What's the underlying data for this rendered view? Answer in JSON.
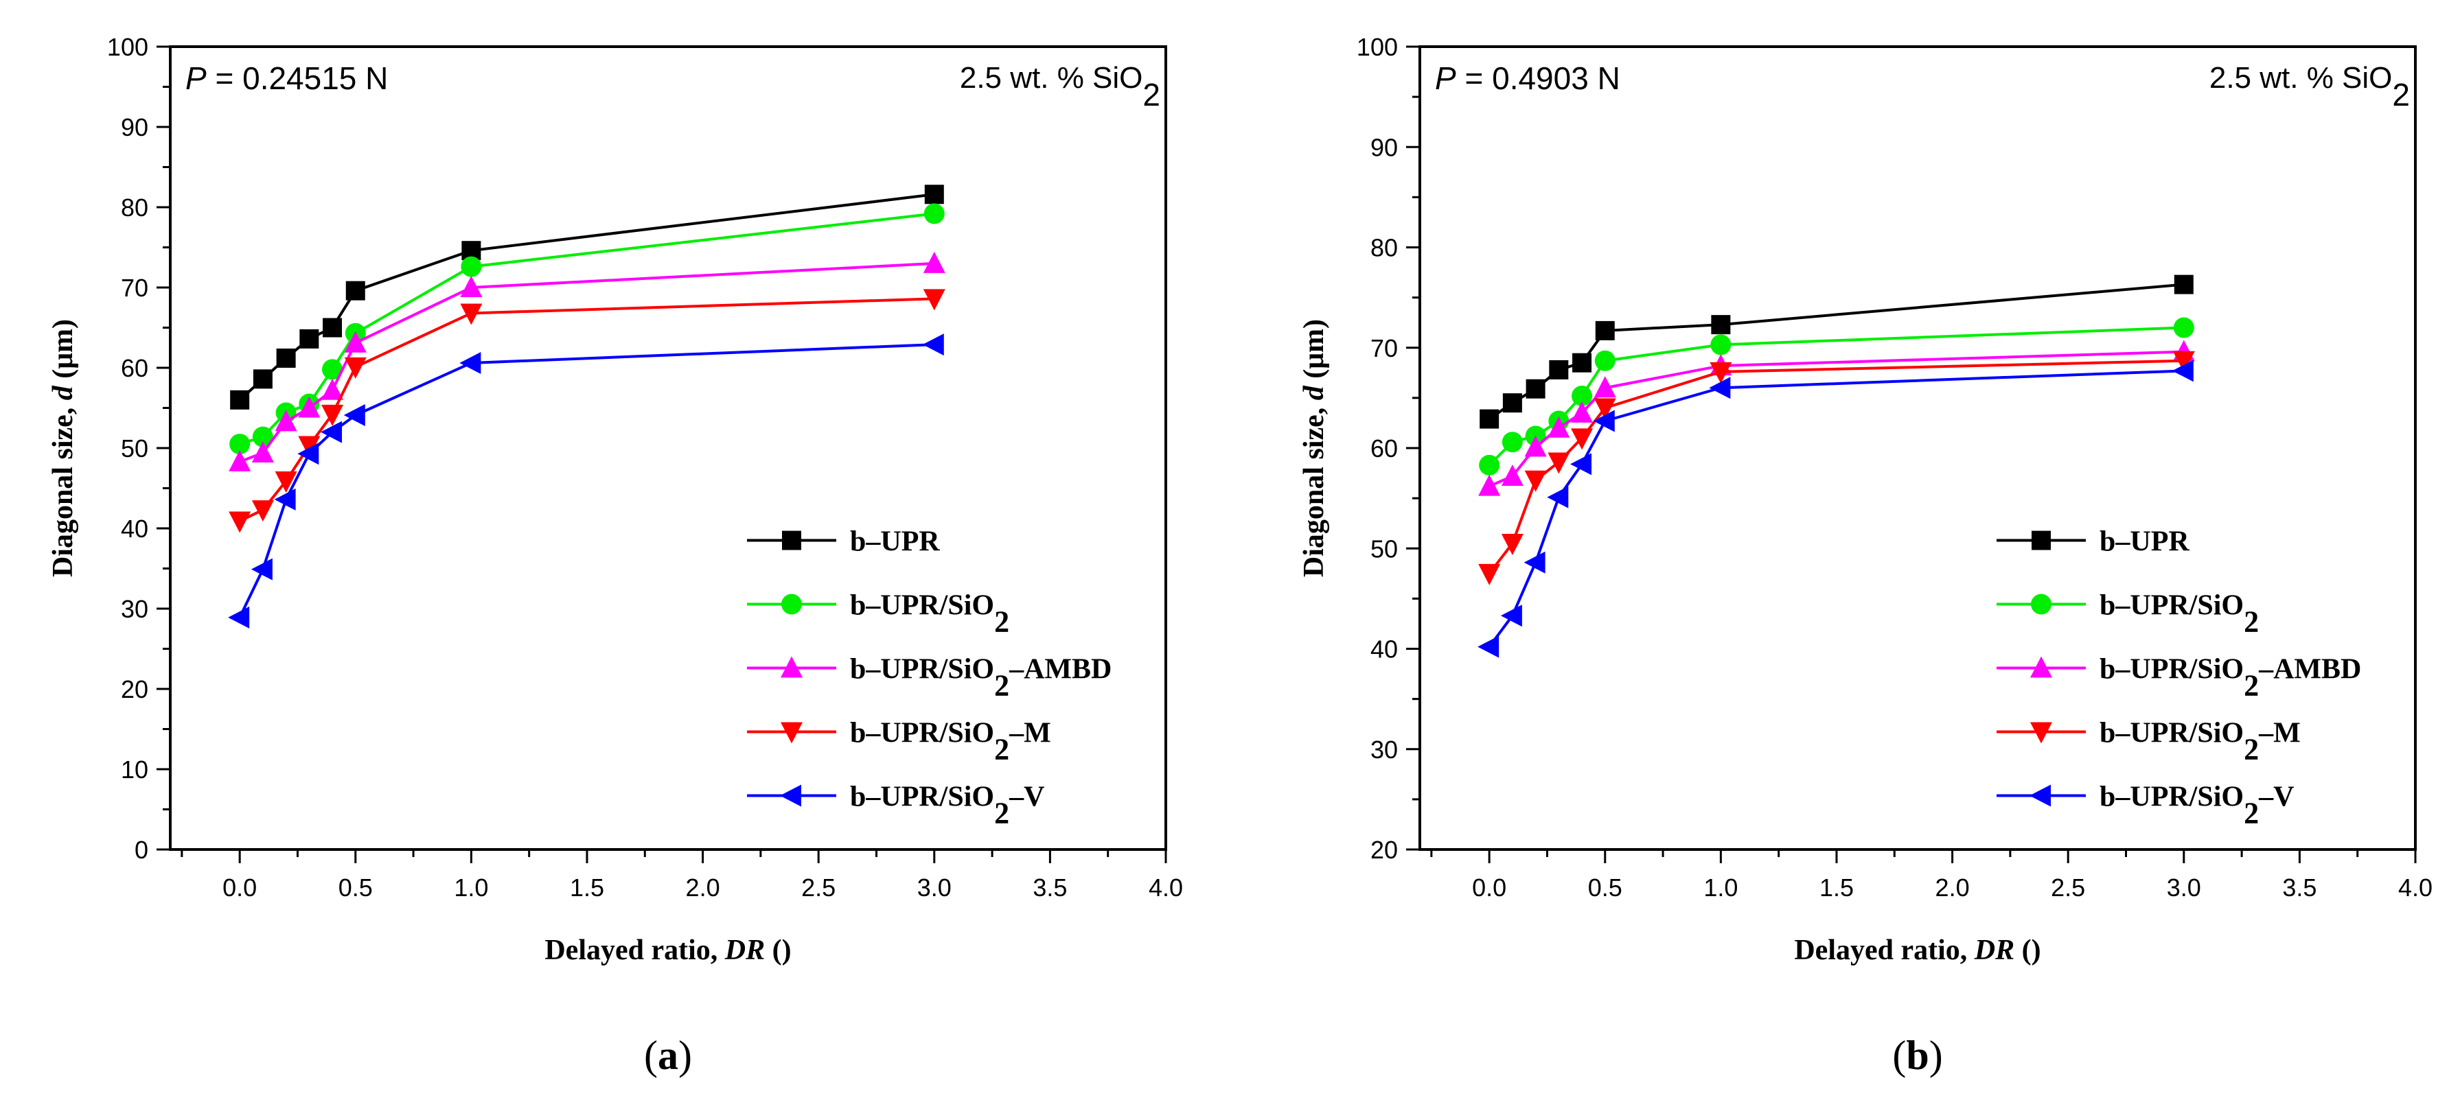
{
  "colors": {
    "b-UPR": "#000000",
    "b-UPR/SiO2": "#00ee00",
    "b-UPR/SiO2-AMBD": "#ff00ff",
    "b-UPR/SiO2-M": "#ff0000",
    "b-UPR/SiO2-V": "#0000ff"
  },
  "chart_data": [
    {
      "type": "line",
      "panel_label": "(a)",
      "annotation_left": "P = 0.24515 N",
      "annotation_right": "2.5 wt. % SiO2",
      "xlabel": "Delayed ratio, DR ()",
      "ylabel": "Diagonal size, d (μm)",
      "xlim": [
        -0.3,
        4.0
      ],
      "ylim": [
        0,
        100
      ],
      "xticks": [
        "0.0",
        "0.5",
        "1.0",
        "1.5",
        "2.0",
        "2.5",
        "3.0",
        "3.5",
        "4.0"
      ],
      "yticks": [
        "0",
        "10",
        "20",
        "30",
        "40",
        "50",
        "60",
        "70",
        "80",
        "90",
        "100"
      ],
      "legend_position": "lower-right",
      "x": [
        0,
        0.1,
        0.2,
        0.3,
        0.4,
        0.5,
        1.0,
        3.0
      ],
      "series": [
        {
          "name": "b–UPR",
          "key": "b-UPR",
          "marker": "square",
          "values": [
            56,
            58.6,
            61.2,
            63.6,
            65,
            69.6,
            74.6,
            81.6
          ]
        },
        {
          "name": "b–UPR/SiO2",
          "key": "b-UPR/SiO2",
          "marker": "circle",
          "values": [
            50.5,
            51.4,
            54.4,
            55.5,
            59.8,
            64.3,
            72.6,
            79.2
          ]
        },
        {
          "name": "b–UPR/SiO2–AMBD",
          "key": "b-UPR/SiO2-AMBD",
          "marker": "triangle-up",
          "values": [
            48.3,
            49.4,
            53.3,
            55,
            57.2,
            63.1,
            70,
            73
          ]
        },
        {
          "name": "b–UPR/SiO2–M",
          "key": "b-UPR/SiO2-M",
          "marker": "triangle-down",
          "values": [
            40.9,
            42.3,
            45.9,
            50.3,
            54.2,
            60.1,
            66.8,
            68.6
          ]
        },
        {
          "name": "b–UPR/SiO2–V",
          "key": "b-UPR/SiO2-V",
          "marker": "triangle-left",
          "values": [
            28.9,
            34.9,
            43.6,
            49.3,
            52,
            54.1,
            60.6,
            62.9
          ]
        }
      ]
    },
    {
      "type": "line",
      "panel_label": "(b)",
      "annotation_left": "P = 0.4903 N",
      "annotation_right": "2.5 wt. % SiO2",
      "xlabel": "Delayed ratio, DR ()",
      "ylabel": "Diagonal size, d (μm)",
      "xlim": [
        -0.3,
        4.0
      ],
      "ylim": [
        20,
        100
      ],
      "xticks": [
        "0.0",
        "0.5",
        "1.0",
        "1.5",
        "2.0",
        "2.5",
        "3.0",
        "3.5",
        "4.0"
      ],
      "yticks": [
        "20",
        "30",
        "40",
        "50",
        "60",
        "70",
        "80",
        "90",
        "100"
      ],
      "legend_position": "lower-right",
      "x": [
        0,
        0.1,
        0.2,
        0.3,
        0.4,
        0.5,
        1.0,
        3.0
      ],
      "series": [
        {
          "name": "b–UPR",
          "key": "b-UPR",
          "marker": "square",
          "values": [
            62.9,
            64.5,
            65.9,
            67.8,
            68.5,
            71.7,
            72.3,
            76.3
          ]
        },
        {
          "name": "b–UPR/SiO2",
          "key": "b-UPR/SiO2",
          "marker": "circle",
          "values": [
            58.3,
            60.6,
            61.2,
            62.7,
            65.2,
            68.7,
            70.3,
            72
          ]
        },
        {
          "name": "b–UPR/SiO2–AMBD",
          "key": "b-UPR/SiO2-AMBD",
          "marker": "triangle-up",
          "values": [
            56.2,
            57.2,
            60.1,
            62,
            63.5,
            66,
            68.2,
            69.6
          ]
        },
        {
          "name": "b–UPR/SiO2–M",
          "key": "b-UPR/SiO2-M",
          "marker": "triangle-down",
          "values": [
            47.5,
            50.5,
            56.8,
            58.6,
            61,
            64,
            67.6,
            68.7
          ]
        },
        {
          "name": "b–UPR/SiO2–V",
          "key": "b-UPR/SiO2-V",
          "marker": "triangle-left",
          "values": [
            40.2,
            43.3,
            48.6,
            55.1,
            58.4,
            62.7,
            66,
            67.7
          ]
        }
      ]
    }
  ]
}
